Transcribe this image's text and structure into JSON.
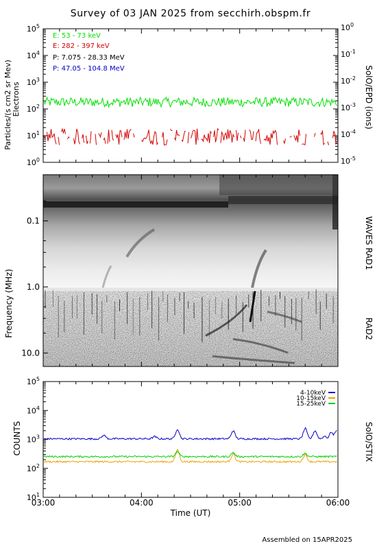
{
  "title": "Survey of 03 JAN 2025 from secchirh.obspm.fr",
  "footer": "Assembled on 15APR2025",
  "chart_data": [
    {
      "type": "line",
      "panel": "SolO/EPD",
      "ylabel_left": "Particles/(s cm2 sr Mev)",
      "ylabel_left_2": "Electrons",
      "ylabel_right": "SolO/EPD (ions)",
      "yscale": "log",
      "ylim": [
        1,
        100000
      ],
      "yticks_left": [
        "10^0",
        "10^1",
        "10^2",
        "10^3",
        "10^4",
        "10^5"
      ],
      "y2lim": [
        1e-05,
        1
      ],
      "yticks_right": [
        "10^-5",
        "10^-4",
        "10^-3",
        "10^-2",
        "10^-1",
        "10^0"
      ],
      "xlim": [
        "03:00",
        "06:00"
      ],
      "legend_position": "top-left",
      "series": [
        {
          "name": "E: 53 - 73 keV",
          "color": "#00e000",
          "level": 180,
          "spread": 0.18
        },
        {
          "name": "E: 282 - 397 keV",
          "color": "#d40000",
          "level": 9,
          "spread": 0.22,
          "gappy": true
        },
        {
          "name": "P: 7.075 - 28.33 MeV",
          "color": "#000000",
          "level": null
        },
        {
          "name": "P: 47.05 - 104.8 MeV",
          "color": "#0000c8",
          "level": null
        }
      ]
    },
    {
      "type": "heatmap",
      "panel": "WAVES",
      "ylabel": "Frequency (MHz)",
      "ylabel_right_top": "WAVES RAD1",
      "ylabel_right_bottom": "RAD2",
      "yscale": "log",
      "ylim": [
        0.02,
        16
      ],
      "yticks": [
        "0.1",
        "1.0",
        "10.0"
      ],
      "xlim": [
        "03:00",
        "06:00"
      ],
      "band_boundary_mhz": 1.0
    },
    {
      "type": "line",
      "panel": "SolO/STIX",
      "ylabel": "COUNTS",
      "ylabel_right": "SolO/STIX",
      "yscale": "log",
      "ylim": [
        10,
        100000
      ],
      "yticks": [
        "10^1",
        "10^2",
        "10^3",
        "10^4",
        "10^5"
      ],
      "xlabel": "Time (UT)",
      "xticks": [
        "03:00",
        "04:00",
        "05:00",
        "06:00"
      ],
      "legend_position": "top-right",
      "series": [
        {
          "name": "4-10keV",
          "color": "#0000c8",
          "level": 1050,
          "peaks": [
            [
              "03:37",
              1400
            ],
            [
              "04:08",
              1250
            ],
            [
              "04:22",
              2300
            ],
            [
              "04:56",
              2000
            ],
            [
              "05:40",
              2400
            ],
            [
              "05:46",
              2000
            ],
            [
              "05:52",
              1300
            ],
            [
              "05:56",
              1800
            ],
            [
              "05:59",
              2000
            ]
          ]
        },
        {
          "name": "10-15keV",
          "color": "#f0a000",
          "level": 170,
          "peaks": [
            [
              "04:22",
              450
            ],
            [
              "04:56",
              320
            ],
            [
              "05:40",
              300
            ]
          ]
        },
        {
          "name": "15-25keV",
          "color": "#00d000",
          "level": 255,
          "peaks": [
            [
              "04:22",
              380
            ],
            [
              "04:56",
              350
            ],
            [
              "05:40",
              330
            ]
          ]
        }
      ]
    }
  ]
}
